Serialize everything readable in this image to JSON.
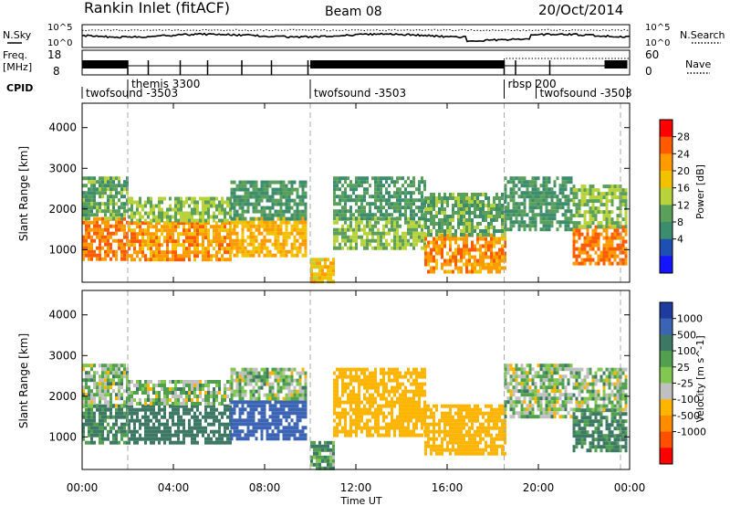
{
  "header": {
    "station": "Rankin Inlet (fitACF)",
    "beam": "Beam 08",
    "date": "20/Oct/2014"
  },
  "noise_panel": {
    "left_label": "N.Sky",
    "left_ticks": [
      "10^5",
      "10^0"
    ],
    "right_ticks": [
      "10^5",
      "10^0"
    ],
    "right_label": "N.Search"
  },
  "freq_panel": {
    "left_label_line1": "Freq.",
    "left_label_line2": "[MHz]",
    "left_ticks": [
      "18",
      "8"
    ],
    "right_ticks": [
      "60",
      "0"
    ],
    "right_label": "Nave"
  },
  "cpid_panel": {
    "label": "CPID",
    "segments": [
      {
        "name": "twofsound -3503",
        "start": 0.0,
        "end": 2.0
      },
      {
        "name": "themis 3300",
        "start": 2.0,
        "end": 10.0
      },
      {
        "name": "twofsound -3503",
        "start": 10.0,
        "end": 18.5
      },
      {
        "name": "rbsp 200",
        "start": 18.5,
        "end": 19.9
      },
      {
        "name": "twofsound -3503",
        "start": 19.9,
        "end": 23.9
      }
    ]
  },
  "time_axis": {
    "label": "Time UT",
    "ticks": [
      "00:00",
      "04:00",
      "08:00",
      "12:00",
      "16:00",
      "20:00",
      "00:00"
    ]
  },
  "power_colorbar": {
    "label": "Power [dB]",
    "ticks": [
      "28",
      "24",
      "20",
      "16",
      "12",
      "8",
      "4"
    ],
    "colors": [
      "#ff0000",
      "#ff5a00",
      "#ff9a00",
      "#f2c200",
      "#b8d23c",
      "#5aa05a",
      "#3c8c6e",
      "#1e50b4",
      "#1414ff"
    ]
  },
  "velocity_colorbar": {
    "label": "Velocity [m s^-1]",
    "ticks": [
      "1000",
      "500",
      "100",
      "25",
      "-25",
      "-100",
      "-500",
      "-1000"
    ],
    "colors": [
      "#1e3ca0",
      "#3c64b4",
      "#3c7864",
      "#50a050",
      "#82c850",
      "#c0c0c0",
      "#ffb400",
      "#ff8c00",
      "#ff5000",
      "#ff0000"
    ]
  },
  "chart_data": [
    {
      "type": "heatmap",
      "title": "",
      "xlabel": "Time UT",
      "ylabel": "Slant Range [km]",
      "ylim": [
        200,
        4600
      ],
      "xlim": [
        0,
        24
      ],
      "x_ticks": [
        "00:00",
        "04:00",
        "08:00",
        "12:00",
        "16:00",
        "20:00",
        "00:00"
      ],
      "y_ticks": [
        1000,
        2000,
        3000,
        4000
      ],
      "colorbar": "Power [dB]",
      "regions": [
        {
          "t0": 0.0,
          "t1": 2.0,
          "r0": 800,
          "r1": 1800,
          "value": 26
        },
        {
          "t0": 0.0,
          "t1": 2.0,
          "r0": 1800,
          "r1": 2800,
          "value": 12
        },
        {
          "t0": 2.0,
          "t1": 6.5,
          "r0": 800,
          "r1": 1700,
          "value": 24
        },
        {
          "t0": 2.0,
          "t1": 6.5,
          "r0": 1700,
          "r1": 2300,
          "value": 14
        },
        {
          "t0": 6.5,
          "t1": 9.8,
          "r0": 900,
          "r1": 1800,
          "value": 22
        },
        {
          "t0": 6.5,
          "t1": 9.8,
          "r0": 1800,
          "r1": 2700,
          "value": 10
        },
        {
          "t0": 10.0,
          "t1": 11.0,
          "r0": 200,
          "r1": 800,
          "value": 20
        },
        {
          "t0": 11.0,
          "t1": 15.0,
          "r0": 1000,
          "r1": 1800,
          "value": 14
        },
        {
          "t0": 11.0,
          "t1": 15.0,
          "r0": 1800,
          "r1": 2800,
          "value": 10
        },
        {
          "t0": 15.0,
          "t1": 18.5,
          "r0": 500,
          "r1": 1400,
          "value": 24
        },
        {
          "t0": 15.0,
          "t1": 18.5,
          "r0": 1400,
          "r1": 2400,
          "value": 12
        },
        {
          "t0": 18.5,
          "t1": 21.5,
          "r0": 1500,
          "r1": 2800,
          "value": 10
        },
        {
          "t0": 21.5,
          "t1": 23.9,
          "r0": 700,
          "r1": 1600,
          "value": 26
        },
        {
          "t0": 21.5,
          "t1": 23.9,
          "r0": 1600,
          "r1": 2600,
          "value": 14
        }
      ]
    },
    {
      "type": "heatmap",
      "title": "",
      "xlabel": "Time UT",
      "ylabel": "Slant Range [km]",
      "ylim": [
        200,
        4600
      ],
      "xlim": [
        0,
        24
      ],
      "x_ticks": [
        "00:00",
        "04:00",
        "08:00",
        "12:00",
        "16:00",
        "20:00",
        "00:00"
      ],
      "y_ticks": [
        1000,
        2000,
        3000,
        4000
      ],
      "colorbar": "Velocity [m s^-1]",
      "regions": [
        {
          "t0": 0.0,
          "t1": 2.0,
          "r0": 900,
          "r1": 1800,
          "value": 150
        },
        {
          "t0": 0.0,
          "t1": 2.0,
          "r0": 1800,
          "r1": 2800,
          "value": 0
        },
        {
          "t0": 2.0,
          "t1": 6.5,
          "r0": 900,
          "r1": 1800,
          "value": 300
        },
        {
          "t0": 2.0,
          "t1": 6.5,
          "r0": 1800,
          "r1": 2400,
          "value": 0
        },
        {
          "t0": 6.5,
          "t1": 9.8,
          "r0": 1000,
          "r1": 1900,
          "value": 700
        },
        {
          "t0": 6.5,
          "t1": 9.8,
          "r0": 1900,
          "r1": 2700,
          "value": 0
        },
        {
          "t0": 10.0,
          "t1": 11.0,
          "r0": 200,
          "r1": 900,
          "value": 80
        },
        {
          "t0": 11.0,
          "t1": 15.0,
          "r0": 1000,
          "r1": 2700,
          "value": -300
        },
        {
          "t0": 15.0,
          "t1": 18.5,
          "r0": 600,
          "r1": 1800,
          "value": -350
        },
        {
          "t0": 18.5,
          "t1": 21.5,
          "r0": 1500,
          "r1": 2800,
          "value": 0
        },
        {
          "t0": 21.5,
          "t1": 23.9,
          "r0": 700,
          "r1": 1700,
          "value": 150
        },
        {
          "t0": 21.5,
          "t1": 23.9,
          "r0": 1700,
          "r1": 2700,
          "value": 0
        }
      ]
    }
  ]
}
